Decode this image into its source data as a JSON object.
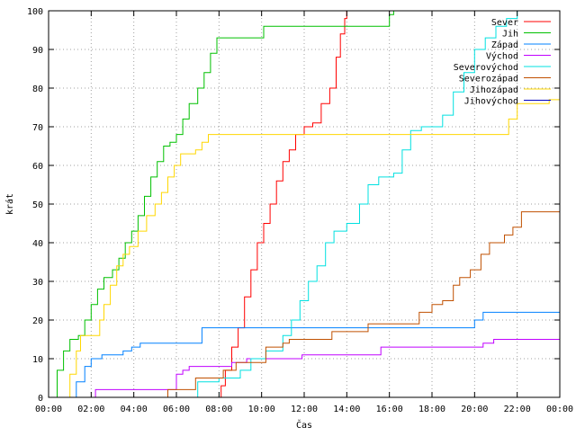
{
  "chart_data": {
    "type": "line",
    "title": "",
    "xlabel": "Čas",
    "ylabel": "krát",
    "xlim": [
      0,
      24
    ],
    "ylim": [
      0,
      100
    ],
    "xticks": [
      0,
      2,
      4,
      6,
      8,
      10,
      12,
      14,
      16,
      18,
      20,
      22,
      24
    ],
    "xtick_labels": [
      "00:00",
      "02:00",
      "04:00",
      "06:00",
      "08:00",
      "10:00",
      "12:00",
      "14:00",
      "16:00",
      "18:00",
      "20:00",
      "22:00",
      "00:00"
    ],
    "yticks": [
      0,
      10,
      20,
      30,
      40,
      50,
      60,
      70,
      80,
      90,
      100
    ],
    "grid": "dotted",
    "legend_position": "top-right",
    "series": [
      {
        "name": "Sever",
        "color": "#ff0000",
        "points": [
          [
            0,
            0
          ],
          [
            8.0,
            0
          ],
          [
            8.1,
            3
          ],
          [
            8.3,
            7
          ],
          [
            8.6,
            13
          ],
          [
            8.9,
            18
          ],
          [
            9.2,
            26
          ],
          [
            9.5,
            33
          ],
          [
            9.8,
            40
          ],
          [
            10.1,
            45
          ],
          [
            10.4,
            50
          ],
          [
            10.7,
            56
          ],
          [
            11.0,
            61
          ],
          [
            11.3,
            64
          ],
          [
            11.6,
            68
          ],
          [
            12.0,
            70
          ],
          [
            12.4,
            71
          ],
          [
            12.8,
            76
          ],
          [
            13.2,
            80
          ],
          [
            13.5,
            88
          ],
          [
            13.7,
            94
          ],
          [
            13.9,
            98
          ],
          [
            14.0,
            100
          ]
        ]
      },
      {
        "name": "Jih",
        "color": "#00c000",
        "points": [
          [
            0,
            0
          ],
          [
            0.4,
            7
          ],
          [
            0.7,
            12
          ],
          [
            1.0,
            15
          ],
          [
            1.4,
            16
          ],
          [
            1.7,
            20
          ],
          [
            2.0,
            24
          ],
          [
            2.3,
            28
          ],
          [
            2.6,
            31
          ],
          [
            3.0,
            33
          ],
          [
            3.3,
            36
          ],
          [
            3.6,
            40
          ],
          [
            3.9,
            43
          ],
          [
            4.2,
            47
          ],
          [
            4.5,
            52
          ],
          [
            4.8,
            57
          ],
          [
            5.1,
            61
          ],
          [
            5.4,
            65
          ],
          [
            5.7,
            66
          ],
          [
            6.0,
            68
          ],
          [
            6.3,
            72
          ],
          [
            6.6,
            76
          ],
          [
            7.0,
            80
          ],
          [
            7.3,
            84
          ],
          [
            7.6,
            89
          ],
          [
            7.9,
            93
          ],
          [
            8.5,
            93
          ],
          [
            10.1,
            96
          ],
          [
            15.8,
            96
          ],
          [
            16.0,
            99
          ],
          [
            16.2,
            100
          ]
        ]
      },
      {
        "name": "Západ",
        "color": "#0080ff",
        "points": [
          [
            0,
            0
          ],
          [
            1.3,
            4
          ],
          [
            1.7,
            8
          ],
          [
            2.0,
            10
          ],
          [
            2.5,
            11
          ],
          [
            3.5,
            12
          ],
          [
            3.9,
            13
          ],
          [
            4.3,
            14
          ],
          [
            7.2,
            18
          ],
          [
            7.5,
            18
          ],
          [
            19.5,
            18
          ],
          [
            20.0,
            20
          ],
          [
            20.4,
            22
          ],
          [
            24,
            22
          ]
        ]
      },
      {
        "name": "Východ",
        "color": "#c000ff",
        "points": [
          [
            0,
            0
          ],
          [
            2.1,
            0
          ],
          [
            2.2,
            2
          ],
          [
            5.6,
            2
          ],
          [
            6.0,
            6
          ],
          [
            6.3,
            7
          ],
          [
            6.6,
            8
          ],
          [
            8.6,
            9
          ],
          [
            9.3,
            10
          ],
          [
            11.7,
            10
          ],
          [
            11.9,
            11
          ],
          [
            15.4,
            11
          ],
          [
            15.6,
            13
          ],
          [
            20.4,
            14
          ],
          [
            20.9,
            15
          ],
          [
            24,
            15
          ]
        ]
      },
      {
        "name": "Severovýchod",
        "color": "#00e0e0",
        "points": [
          [
            0,
            0
          ],
          [
            6.5,
            0
          ],
          [
            7.0,
            4
          ],
          [
            8.0,
            5
          ],
          [
            9.0,
            7
          ],
          [
            9.5,
            10
          ],
          [
            10.2,
            12
          ],
          [
            11.0,
            16
          ],
          [
            11.4,
            20
          ],
          [
            11.8,
            25
          ],
          [
            12.2,
            30
          ],
          [
            12.6,
            34
          ],
          [
            13.0,
            40
          ],
          [
            13.4,
            43
          ],
          [
            14.0,
            45
          ],
          [
            14.6,
            50
          ],
          [
            15.0,
            55
          ],
          [
            15.5,
            57
          ],
          [
            16.2,
            58
          ],
          [
            16.6,
            64
          ],
          [
            17.0,
            69
          ],
          [
            17.5,
            70
          ],
          [
            18.0,
            70
          ],
          [
            18.5,
            73
          ],
          [
            19.0,
            79
          ],
          [
            19.5,
            84
          ],
          [
            20.0,
            90
          ],
          [
            20.5,
            93
          ],
          [
            21.0,
            96
          ],
          [
            21.5,
            98
          ],
          [
            22.0,
            100
          ]
        ]
      },
      {
        "name": "Severozápad",
        "color": "#c05000",
        "points": [
          [
            0,
            0
          ],
          [
            5.5,
            0
          ],
          [
            5.6,
            2
          ],
          [
            6.7,
            2
          ],
          [
            6.9,
            5
          ],
          [
            7.8,
            5
          ],
          [
            8.2,
            7
          ],
          [
            8.8,
            9
          ],
          [
            10.2,
            13
          ],
          [
            11.0,
            14
          ],
          [
            11.3,
            15
          ],
          [
            13.0,
            15
          ],
          [
            13.3,
            17
          ],
          [
            14.6,
            17
          ],
          [
            15.0,
            19
          ],
          [
            17.0,
            19
          ],
          [
            17.4,
            22
          ],
          [
            18.0,
            24
          ],
          [
            18.5,
            25
          ],
          [
            19.0,
            29
          ],
          [
            19.3,
            31
          ],
          [
            19.8,
            33
          ],
          [
            20.3,
            37
          ],
          [
            20.7,
            40
          ],
          [
            21.4,
            42
          ],
          [
            21.8,
            44
          ],
          [
            22.2,
            48
          ],
          [
            24,
            48
          ]
        ]
      },
      {
        "name": "Jihozápad",
        "color": "#ffd700",
        "points": [
          [
            0,
            0
          ],
          [
            0.7,
            0
          ],
          [
            1.0,
            6
          ],
          [
            1.3,
            12
          ],
          [
            1.5,
            16
          ],
          [
            2.0,
            16
          ],
          [
            2.4,
            20
          ],
          [
            2.6,
            24
          ],
          [
            2.9,
            29
          ],
          [
            3.2,
            34
          ],
          [
            3.5,
            37
          ],
          [
            3.8,
            39
          ],
          [
            4.2,
            43
          ],
          [
            4.6,
            47
          ],
          [
            5.0,
            50
          ],
          [
            5.3,
            53
          ],
          [
            5.6,
            57
          ],
          [
            5.9,
            60
          ],
          [
            6.2,
            63
          ],
          [
            6.9,
            64
          ],
          [
            7.2,
            66
          ],
          [
            7.5,
            68
          ],
          [
            21.4,
            68
          ],
          [
            21.6,
            72
          ],
          [
            22.0,
            76
          ],
          [
            23.5,
            77
          ],
          [
            24,
            82
          ]
        ]
      },
      {
        "name": "Jihovýchod",
        "color": "#0000c0",
        "points": [
          [
            0,
            0
          ],
          [
            24,
            0
          ]
        ]
      }
    ]
  }
}
